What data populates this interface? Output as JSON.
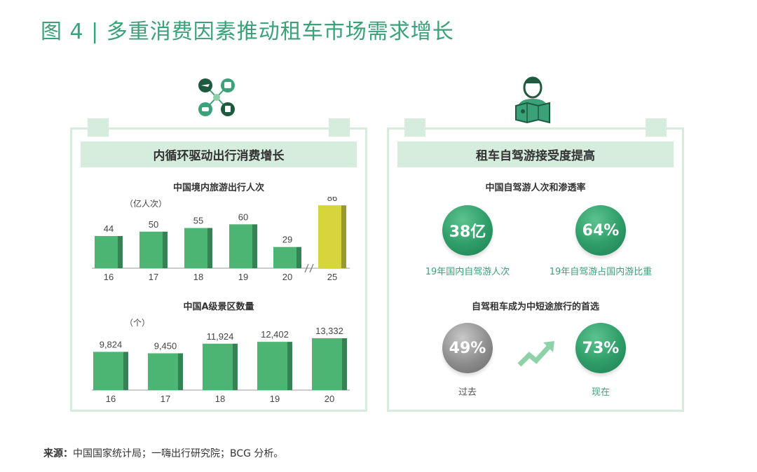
{
  "figure": {
    "title": "图 4 | 多重消费因素推动租车市场需求增长",
    "source_label": "来源：",
    "source_text": "中国国家统计局；一嗨出行研究院；BCG 分析。"
  },
  "left_panel": {
    "header": "内循环驱动出行消费增长",
    "icon": "transport-network-icon"
  },
  "right_panel": {
    "header": "租车自驾游接受度提高",
    "icon": "traveler-map-icon",
    "section1_title": "中国自驾游人次和渗透率",
    "stat1_value": "38亿",
    "stat1_caption": "19年国内自驾游人次",
    "stat2_value": "64%",
    "stat2_caption": "19年自驾游占国内游比重",
    "section2_title": "自驾租车成为中短途旅行的首选",
    "past_value": "49%",
    "past_caption": "过去",
    "now_value": "73%",
    "now_caption": "现在",
    "trend_icon": "trend-up-arrow-icon"
  },
  "chart_data": [
    {
      "type": "bar",
      "title": "中国境内旅游出行人次",
      "unit": "（亿人次）",
      "categories": [
        "16",
        "17",
        "18",
        "19",
        "20",
        "25"
      ],
      "values": [
        44,
        50,
        55,
        60,
        29,
        86
      ],
      "value_labels": [
        "44",
        "50",
        "55",
        "60",
        "29",
        "86"
      ],
      "ylim": [
        0,
        90
      ],
      "axis_break_between": [
        "20",
        "25"
      ],
      "colors": {
        "actual": "#4cb574",
        "forecast": "#d6d63c"
      }
    },
    {
      "type": "bar",
      "title": "中国A级景区数量",
      "unit": "（个）",
      "categories": [
        "16",
        "17",
        "18",
        "19",
        "20"
      ],
      "values": [
        9824,
        9450,
        11924,
        12402,
        13332
      ],
      "value_labels": [
        "9,824",
        "9,450",
        "11,924",
        "12,402",
        "13,332"
      ],
      "ylim": [
        0,
        18000
      ],
      "colors": {
        "actual": "#4cb574"
      }
    }
  ]
}
